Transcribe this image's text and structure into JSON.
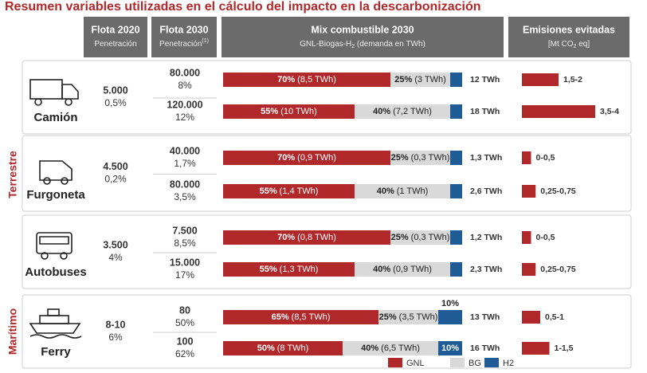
{
  "title": "Resumen variables utilizadas en el cálculo del impacto en la descarbonización",
  "headers": [
    {
      "title": "Flota 2020",
      "subtitle": [
        {
          "text": "Penetración"
        }
      ]
    },
    {
      "title": "Flota 2030",
      "subtitle": [
        {
          "text": "Penetración"
        },
        {
          "sup": "(1)"
        }
      ]
    },
    {
      "title": "Mix combustible 2030",
      "subtitle": [
        {
          "text": "GNL-Biogas-H"
        },
        {
          "sub": "2"
        },
        {
          "text": " (demanda en TWh)"
        }
      ]
    },
    {
      "title": "Emisiones evitadas",
      "subtitle": [
        {
          "text": "[Mt CO"
        },
        {
          "sub": "2"
        },
        {
          "text": " eq]"
        }
      ]
    }
  ],
  "legend": [
    {
      "name": "GNL",
      "color": "#b0282a"
    },
    {
      "name": "BG",
      "color": "#d9d9d9"
    },
    {
      "name": "H2",
      "color": "#1f5c96"
    }
  ],
  "groups": [
    {
      "label": "Terrestre",
      "vehicles": [
        {
          "name": "Camión",
          "fleet2020": "5.000",
          "pen2020": "0,5%",
          "rows": [
            {
              "fleet": "80.000",
              "pen": "8%",
              "gnl": {
                "value": 70,
                "label": "70%",
                "twh": "(8,5 TWh)"
              },
              "bg": {
                "value": 25,
                "label": "25%",
                "twh": "(3 TWh)"
              },
              "h2": {
                "value": 5
              },
              "total": "12 TWh",
              "emissions": {
                "low": 1.5,
                "high": 2,
                "label": "1,5-2"
              }
            },
            {
              "fleet": "120.000",
              "pen": "12%",
              "gnl": {
                "value": 55,
                "label": "55%",
                "twh": "(10 TWh)"
              },
              "bg": {
                "value": 40,
                "label": "40%",
                "twh": "(7,2 TWh)"
              },
              "h2": {
                "value": 5
              },
              "total": "18 TWh",
              "emissions": {
                "low": 3.5,
                "high": 4,
                "label": "3,5-4"
              }
            }
          ]
        },
        {
          "name": "Furgoneta",
          "fleet2020": "4.500",
          "pen2020": "0,2%",
          "rows": [
            {
              "fleet": "40.000",
              "pen": "1,7%",
              "gnl": {
                "value": 70,
                "label": "70%",
                "twh": "(0,9 TWh)"
              },
              "bg": {
                "value": 25,
                "label": "25%",
                "twh": "(0,3 TWh)"
              },
              "h2": {
                "value": 5
              },
              "total": "1,3 TWh",
              "emissions": {
                "low": 0,
                "high": 0.5,
                "label": "0-0,5"
              }
            },
            {
              "fleet": "80.000",
              "pen": "3,5%",
              "gnl": {
                "value": 55,
                "label": "55%",
                "twh": "(1,4 TWh)"
              },
              "bg": {
                "value": 40,
                "label": "40%",
                "twh": "(1 TWh)"
              },
              "h2": {
                "value": 5
              },
              "total": "2,6 TWh",
              "emissions": {
                "low": 0.25,
                "high": 0.75,
                "label": "0,25-0,75"
              }
            }
          ]
        },
        {
          "name": "Autobuses",
          "fleet2020": "3.500",
          "pen2020": "4%",
          "rows": [
            {
              "fleet": "7.500",
              "pen": "8,5%",
              "gnl": {
                "value": 70,
                "label": "70%",
                "twh": "(0,8 TWh)"
              },
              "bg": {
                "value": 25,
                "label": "25%",
                "twh": "(0,3 TWh)"
              },
              "h2": {
                "value": 5
              },
              "total": "1,2 TWh",
              "emissions": {
                "low": 0,
                "high": 0.5,
                "label": "0-0,5"
              }
            },
            {
              "fleet": "15.000",
              "pen": "17%",
              "gnl": {
                "value": 55,
                "label": "55%",
                "twh": "(1,3 TWh)"
              },
              "bg": {
                "value": 40,
                "label": "40%",
                "twh": "(0,9 TWh)"
              },
              "h2": {
                "value": 5
              },
              "total": "2,3 TWh",
              "emissions": {
                "low": 0.25,
                "high": 0.75,
                "label": "0,25-0,75"
              }
            }
          ]
        }
      ]
    },
    {
      "label": "Marítimo",
      "vehicles": [
        {
          "name": "Ferry",
          "fleet2020": "8-10",
          "pen2020": "6%",
          "rows": [
            {
              "fleet": "80",
              "pen": "50%",
              "gnl": {
                "value": 65,
                "label": "65%",
                "twh": "(8,5 TWh)"
              },
              "bg": {
                "value": 25,
                "label": "25%",
                "twh": "(3,5 TWh)"
              },
              "h2": {
                "value": 10,
                "label": "10%"
              },
              "total": "13 TWh",
              "emissions": {
                "low": 0.5,
                "high": 1,
                "label": "0,5-1"
              }
            },
            {
              "fleet": "100",
              "pen": "62%",
              "gnl": {
                "value": 50,
                "label": "50%",
                "twh": "(8 TWh)"
              },
              "bg": {
                "value": 40,
                "label": "40%",
                "twh": "(6,5 TWh)"
              },
              "h2": {
                "value": 10,
                "label": "10%"
              },
              "total": "16 TWh",
              "emissions": {
                "low": 1,
                "high": 1.5,
                "label": "1-1,5"
              }
            }
          ]
        }
      ]
    }
  ]
}
